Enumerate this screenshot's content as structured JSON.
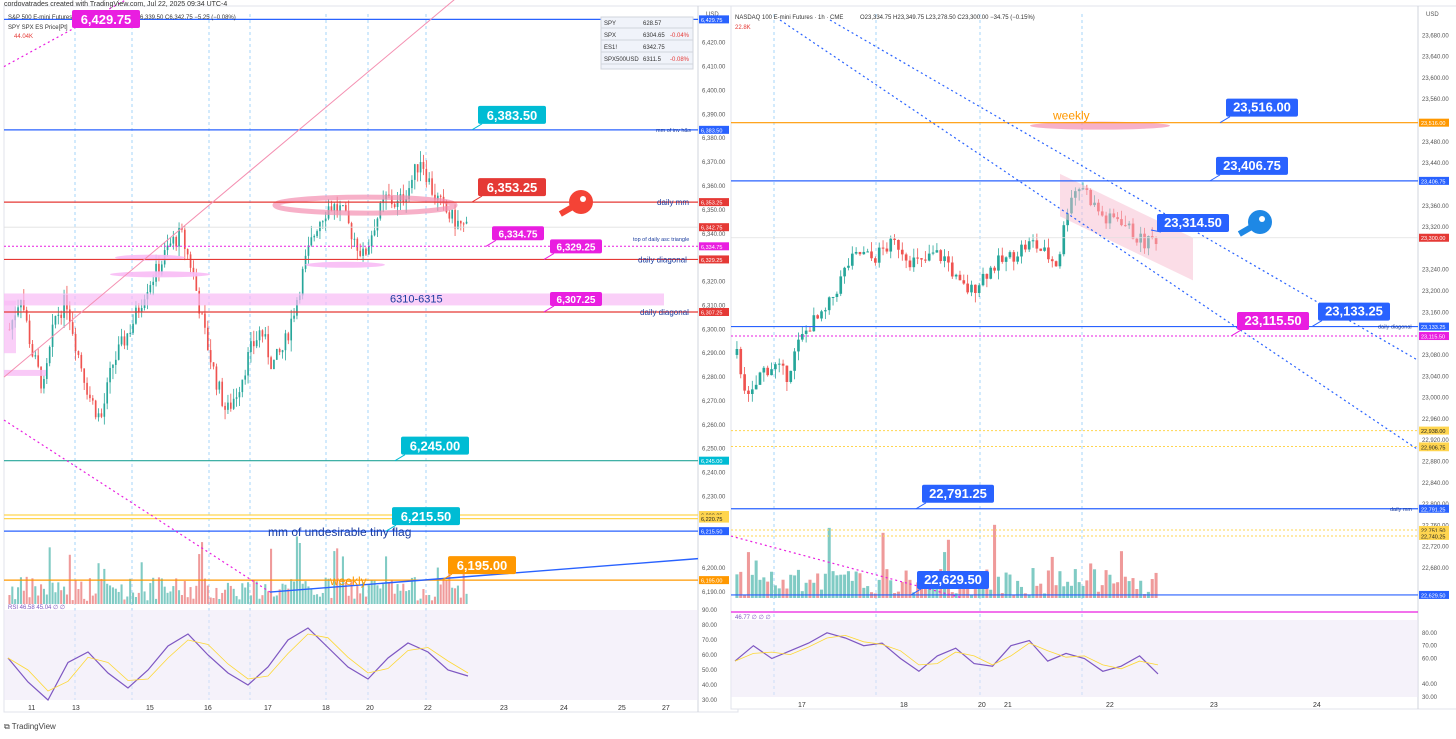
{
  "credit": "cordovatrades created with TradingView.com, Jul 22, 2025 09:34 UTC-4",
  "watermark": "TradingView",
  "colors": {
    "up": "#26a69a",
    "down": "#ef5350",
    "blue": "#2962ff",
    "red": "#e53935",
    "magenta": "#e91ee0",
    "teal": "#00bcd4",
    "orange": "#ff9800",
    "pink": "#f8bbf5",
    "rsi": "#7e57c2",
    "yellow": "#ffd54f"
  },
  "left": {
    "header": {
      "symbol": "S&P 500 E-mini Futures",
      "ohlc": "6,339.50  C6,342.75  −5.25 (−0.08%)",
      "sub1": "SPY SPX ES Price[Pt]",
      "sub2": "44.04K"
    },
    "currency": "USD",
    "watchlist": [
      {
        "sym": "SPY",
        "val": "628.57",
        "chg": ""
      },
      {
        "sym": "SPX",
        "val": "6304.65",
        "chg": "-0.04%"
      },
      {
        "sym": "ES1!",
        "val": "6342.75",
        "chg": ""
      },
      {
        "sym": "SPX500USD",
        "val": "6311.5",
        "chg": "-0.08%"
      }
    ],
    "rsi_label": "RSI  46.58  45.04  ∅  ∅",
    "x_labels": [
      "11",
      "13",
      "15",
      "16",
      "17",
      "18",
      "20",
      "22",
      "23",
      "24",
      "25",
      "27"
    ],
    "yaxis": [
      {
        "v": 6420,
        "t": "6,420.00"
      },
      {
        "v": 6410,
        "t": "6,410.00"
      },
      {
        "v": 6400,
        "t": "6,400.00"
      },
      {
        "v": 6390,
        "t": "6,390.00"
      },
      {
        "v": 6380,
        "t": "6,380.00"
      },
      {
        "v": 6370,
        "t": "6,370.00"
      },
      {
        "v": 6360,
        "t": "6,360.00"
      },
      {
        "v": 6350,
        "t": "6,350.00"
      },
      {
        "v": 6340,
        "t": "6,340.00"
      },
      {
        "v": 6320,
        "t": "6,320.00"
      },
      {
        "v": 6310,
        "t": "6,310.00"
      },
      {
        "v": 6300,
        "t": "6,300.00"
      },
      {
        "v": 6290,
        "t": "6,290.00"
      },
      {
        "v": 6280,
        "t": "6,280.00"
      },
      {
        "v": 6270,
        "t": "6,270.00"
      },
      {
        "v": 6260,
        "t": "6,260.00"
      },
      {
        "v": 6250,
        "t": "6,250.00"
      },
      {
        "v": 6240,
        "t": "6,240.00"
      },
      {
        "v": 6230,
        "t": "6,230.00"
      },
      {
        "v": 6200,
        "t": "6,200.00"
      },
      {
        "v": 6190,
        "t": "6,190.00"
      }
    ],
    "rsi_axis": [
      "90.00",
      "80.00",
      "70.00",
      "60.00",
      "50.00",
      "40.00",
      "30.00"
    ],
    "price_tags": [
      {
        "v": 6429.75,
        "t": "6,429.75",
        "c": "#2962ff"
      },
      {
        "v": 6383.5,
        "t": "6,383.50",
        "c": "#2962ff"
      },
      {
        "v": 6353.25,
        "t": "6,353.25",
        "c": "#e53935"
      },
      {
        "v": 6342.75,
        "t": "6,342.75",
        "c": "#e53935"
      },
      {
        "v": 6334.75,
        "t": "6,334.75",
        "c": "#e91ee0"
      },
      {
        "v": 6329.25,
        "t": "6,329.25",
        "c": "#e53935"
      },
      {
        "v": 6307.25,
        "t": "6,307.25",
        "c": "#e53935"
      },
      {
        "v": 6245,
        "t": "6,245.00",
        "c": "#00bcd4"
      },
      {
        "v": 6222.25,
        "t": "6,222.25",
        "c": "#ffd54f"
      },
      {
        "v": 6220.75,
        "t": "6,220.75",
        "c": "#ffd54f"
      },
      {
        "v": 6215.5,
        "t": "6,215.50",
        "c": "#2962ff"
      },
      {
        "v": 6195,
        "t": "6,195.00",
        "c": "#ff9800"
      }
    ],
    "callouts": [
      {
        "v": 6429.75,
        "t": "6,429.75",
        "c": "#e91ee0",
        "big": true
      },
      {
        "v": 6383.5,
        "t": "6,383.50",
        "c": "#00bcd4",
        "big": true
      },
      {
        "v": 6353.25,
        "t": "6,353.25",
        "c": "#e53935",
        "big": true
      },
      {
        "v": 6334.75,
        "t": "6,334.75",
        "c": "#e91ee0",
        "big": false
      },
      {
        "v": 6329.25,
        "t": "6,329.25",
        "c": "#e91ee0",
        "big": false
      },
      {
        "v": 6307.25,
        "t": "6,307.25",
        "c": "#e91ee0",
        "big": false
      },
      {
        "v": 6245,
        "t": "6,245.00",
        "c": "#00bcd4",
        "big": true
      },
      {
        "v": 6215.5,
        "t": "6,215.50",
        "c": "#00bcd4",
        "big": true
      },
      {
        "v": 6195,
        "t": "6,195.00",
        "c": "#ff9800",
        "big": true
      }
    ],
    "annotations": {
      "mm_inv": "mm of inv h&s",
      "daily_mm": "daily mm",
      "top_daily": "top of daily asc triangle",
      "daily_diag1": "daily diagonal",
      "daily_diag2": "daily diagonal",
      "zone": "6310-6315",
      "mm_flag": "mm of undesirable tiny flag",
      "weekly": "weekly"
    }
  },
  "right": {
    "header": {
      "symbol": "NASDAQ 100 E-mini Futures · 1h · CME",
      "ohlc": "O23,334.75  H23,349.75  L23,278.50  C23,300.00  −34.75 (−0.15%)",
      "sub": "22.8K"
    },
    "currency": "USD",
    "x_labels": [
      "17",
      "18",
      "20",
      "21",
      "22",
      "23",
      "24"
    ],
    "rsi_label": "46.77  ∅  ∅  ∅",
    "yaxis": [
      {
        "v": 23680,
        "t": "23,680.00"
      },
      {
        "v": 23640,
        "t": "23,640.00"
      },
      {
        "v": 23600,
        "t": "23,600.00"
      },
      {
        "v": 23560,
        "t": "23,560.00"
      },
      {
        "v": 23480,
        "t": "23,480.00"
      },
      {
        "v": 23440,
        "t": "23,440.00"
      },
      {
        "v": 23360,
        "t": "23,360.00"
      },
      {
        "v": 23320,
        "t": "23,320.00"
      },
      {
        "v": 23240,
        "t": "23,240.00"
      },
      {
        "v": 23200,
        "t": "23,200.00"
      },
      {
        "v": 23160,
        "t": "23,160.00"
      },
      {
        "v": 23080,
        "t": "23,080.00"
      },
      {
        "v": 23040,
        "t": "23,040.00"
      },
      {
        "v": 23000,
        "t": "23,000.00"
      },
      {
        "v": 22960,
        "t": "22,960.00"
      },
      {
        "v": 22920,
        "t": "22,920.00"
      },
      {
        "v": 22880,
        "t": "22,880.00"
      },
      {
        "v": 22840,
        "t": "22,840.00"
      },
      {
        "v": 22800,
        "t": "22,800.00"
      },
      {
        "v": 22760,
        "t": "22,760.00"
      },
      {
        "v": 22720,
        "t": "22,720.00"
      },
      {
        "v": 22680,
        "t": "22,680.00"
      }
    ],
    "rsi_axis": [
      "80.00",
      "70.00",
      "60.00",
      "40.00",
      "30.00"
    ],
    "price_tags": [
      {
        "v": 23516,
        "t": "23,516.00",
        "c": "#ff9800"
      },
      {
        "v": 23406.75,
        "t": "23,406.75",
        "c": "#2962ff"
      },
      {
        "v": 23300,
        "t": "23,300.00",
        "c": "#e53935"
      },
      {
        "v": 23133.25,
        "t": "23,133.25",
        "c": "#2962ff"
      },
      {
        "v": 23115.5,
        "t": "23,115.50",
        "c": "#e91ee0"
      },
      {
        "v": 22938,
        "t": "22,938.00",
        "c": "#ffd54f"
      },
      {
        "v": 22908.25,
        "t": "22,908.25",
        "c": "#ffd54f"
      },
      {
        "v": 22906.75,
        "t": "22,906.75",
        "c": "#ffd54f"
      },
      {
        "v": 22791.25,
        "t": "22,791.25",
        "c": "#2962ff"
      },
      {
        "v": 22751.5,
        "t": "22,751.50",
        "c": "#ffd54f"
      },
      {
        "v": 22740.25,
        "t": "22,740.25",
        "c": "#ffd54f"
      },
      {
        "v": 22629.5,
        "t": "22,629.50",
        "c": "#2962ff"
      }
    ],
    "callouts": [
      {
        "v": 23516,
        "t": "23,516.00",
        "c": "#2962ff"
      },
      {
        "v": 23406.75,
        "t": "23,406.75",
        "c": "#2962ff"
      },
      {
        "v": 23314.5,
        "t": "23,314.50",
        "c": "#2962ff"
      },
      {
        "v": 23133.25,
        "t": "23,133.25",
        "c": "#2962ff"
      },
      {
        "v": 23115.5,
        "t": "23,115.50",
        "c": "#e91ee0"
      },
      {
        "v": 22791.25,
        "t": "22,791.25",
        "c": "#2962ff"
      },
      {
        "v": 22629.5,
        "t": "22,629.50",
        "c": "#2962ff"
      }
    ],
    "annotations": {
      "weekly": "weekly",
      "daily_diag": "daily diagonal",
      "daily_mm": "daily mm"
    }
  },
  "chart_data": [
    {
      "type": "candlestick",
      "title": "S&P 500 E-mini Futures",
      "ylim": [
        6185,
        6432
      ],
      "levels": [
        6429.75,
        6383.5,
        6353.25,
        6334.75,
        6329.25,
        6307.25,
        6245,
        6222.25,
        6220.75,
        6215.5,
        6195
      ],
      "close_path": [
        6300,
        6315,
        6290,
        6275,
        6305,
        6312,
        6290,
        6272,
        6262,
        6285,
        6295,
        6305,
        6318,
        6325,
        6335,
        6340,
        6325,
        6300,
        6280,
        6265,
        6275,
        6290,
        6300,
        6285,
        6292,
        6310,
        6330,
        6345,
        6352,
        6350,
        6340,
        6330,
        6345,
        6355,
        6352,
        6360,
        6372,
        6358,
        6350,
        6345,
        6342
      ],
      "rsi": [
        58,
        42,
        30,
        55,
        62,
        48,
        38,
        50,
        66,
        74,
        60,
        48,
        40,
        52,
        70,
        78,
        65,
        52,
        44,
        58,
        68,
        62,
        50,
        46
      ]
    },
    {
      "type": "candlestick",
      "title": "NASDAQ 100 E-mini Futures",
      "ylim": [
        22620,
        23720
      ],
      "levels": [
        23516,
        23406.75,
        23300,
        23133.25,
        23115.5,
        22938,
        22908.25,
        22906.75,
        22791.25,
        22751.5,
        22740.25,
        22629.5
      ],
      "close_path": [
        23080,
        22990,
        23050,
        23060,
        23040,
        23100,
        23140,
        23150,
        23200,
        23250,
        23270,
        23260,
        23280,
        23290,
        23260,
        23250,
        23270,
        23260,
        23210,
        23200,
        23230,
        23250,
        23260,
        23280,
        23290,
        23270,
        23250,
        23380,
        23400,
        23360,
        23330,
        23340,
        23310,
        23290,
        23300
      ],
      "rsi": [
        58,
        70,
        60,
        66,
        72,
        80,
        76,
        70,
        72,
        60,
        50,
        62,
        68,
        56,
        54,
        70,
        74,
        58,
        64,
        60,
        50,
        54,
        62,
        48
      ]
    }
  ]
}
